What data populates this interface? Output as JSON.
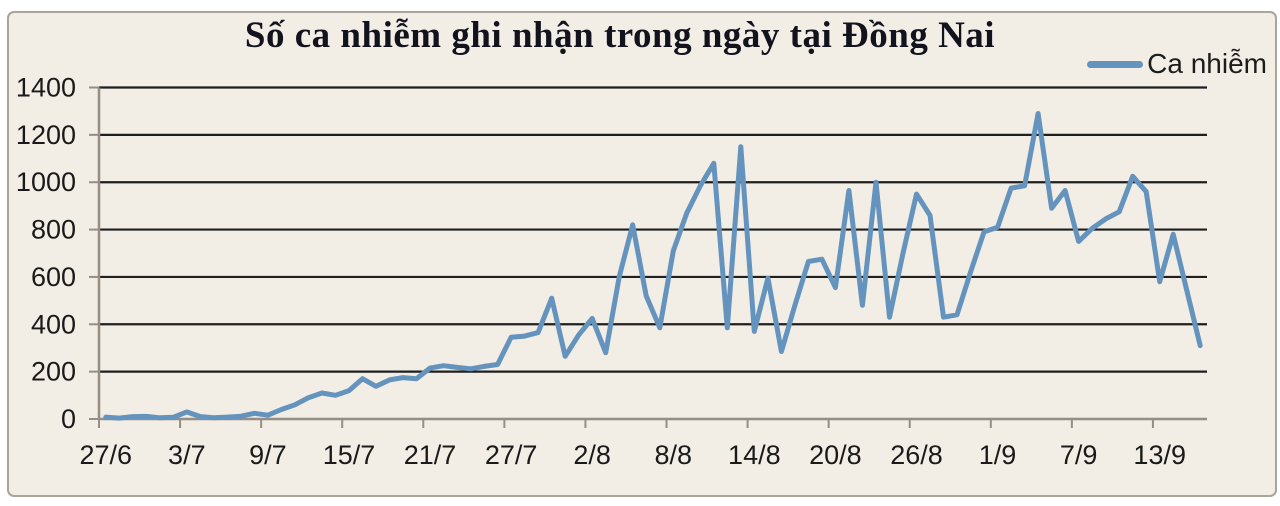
{
  "title": "Số ca nhiễm ghi nhận trong ngày tại Đồng Nai",
  "legend": {
    "label": "Ca nhiễm"
  },
  "colors": {
    "line": "#6494BE",
    "plot_background": "#F2EDE5",
    "outer_background": "#FFFFFF",
    "grid": "#1f1f1f",
    "axis": "#948e84",
    "frame_border": "#ABA49B",
    "title_text": "#13131d",
    "label_text": "#1a1a1a"
  },
  "chart_data": {
    "type": "line",
    "title": "Số ca nhiễm ghi nhận trong ngày tại Đồng Nai",
    "legend_entries": [
      "Ca nhiễm"
    ],
    "legend_position": "top-right",
    "grid": "horizontal",
    "ylim": [
      0,
      1400
    ],
    "y_ticks": [
      0,
      200,
      400,
      600,
      800,
      1000,
      1200,
      1400
    ],
    "x_tick_interval": 6,
    "x_tick_labels": [
      "27/6",
      "3/7",
      "9/7",
      "15/7",
      "21/7",
      "27/7",
      "2/8",
      "8/8",
      "14/8",
      "20/8",
      "26/8",
      "1/9",
      "7/9",
      "13/9"
    ],
    "x": [
      "27/6",
      "28/6",
      "29/6",
      "30/6",
      "1/7",
      "2/7",
      "3/7",
      "4/7",
      "5/7",
      "6/7",
      "7/7",
      "8/7",
      "9/7",
      "10/7",
      "11/7",
      "12/7",
      "13/7",
      "14/7",
      "15/7",
      "16/7",
      "17/7",
      "18/7",
      "19/7",
      "20/7",
      "21/7",
      "22/7",
      "23/7",
      "24/7",
      "25/7",
      "26/7",
      "27/7",
      "28/7",
      "29/7",
      "30/7",
      "31/7",
      "1/8",
      "2/8",
      "3/8",
      "4/8",
      "5/8",
      "6/8",
      "7/8",
      "8/8",
      "9/8",
      "10/8",
      "11/8",
      "12/8",
      "13/8",
      "14/8",
      "15/8",
      "16/8",
      "17/8",
      "18/8",
      "19/8",
      "20/8",
      "21/8",
      "22/8",
      "23/8",
      "24/8",
      "25/8",
      "26/8",
      "27/8",
      "28/8",
      "29/8",
      "30/8",
      "31/8",
      "1/9",
      "2/9",
      "3/9",
      "4/9",
      "5/9",
      "6/9",
      "7/9",
      "8/9",
      "9/9",
      "10/9",
      "11/9",
      "12/9",
      "13/9",
      "14/9",
      "15/9",
      "16/9"
    ],
    "series": [
      {
        "name": "Ca nhiễm",
        "values": [
          8,
          4,
          10,
          11,
          5,
          7,
          30,
          10,
          5,
          8,
          12,
          24,
          16,
          40,
          60,
          90,
          110,
          100,
          120,
          170,
          138,
          165,
          175,
          170,
          215,
          225,
          218,
          212,
          222,
          230,
          345,
          350,
          365,
          510,
          265,
          355,
          425,
          280,
          600,
          820,
          520,
          385,
          710,
          870,
          985,
          1080,
          385,
          1150,
          370,
          595,
          285,
          480,
          665,
          675,
          555,
          965,
          480,
          1000,
          430,
          700,
          950,
          860,
          430,
          440,
          620,
          790,
          810,
          975,
          985,
          1290,
          890,
          965,
          750,
          805,
          845,
          875,
          1025,
          960,
          580,
          780,
          545,
          310
        ]
      }
    ]
  }
}
